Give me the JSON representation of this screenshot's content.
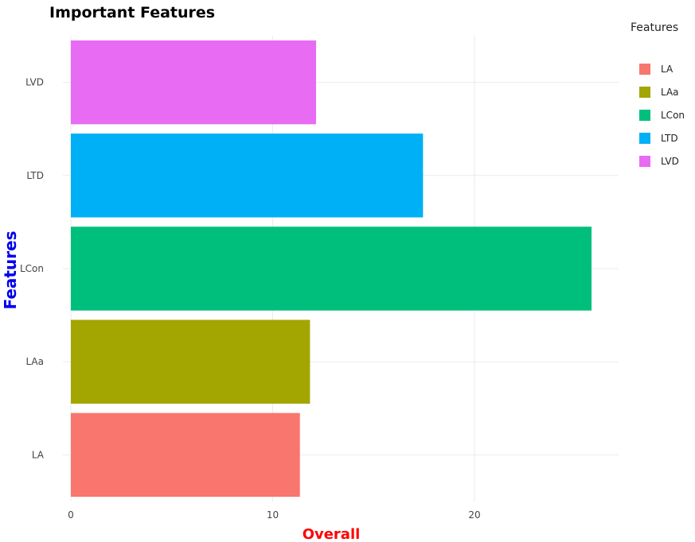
{
  "chart_data": {
    "type": "bar",
    "orientation": "horizontal",
    "title": "Important Features",
    "xlabel": "Overall",
    "ylabel": "Features",
    "xlabel_color": "#ff0000",
    "ylabel_color": "#0000ee",
    "categories": [
      "LA",
      "LAa",
      "LCon",
      "LTD",
      "LVD"
    ],
    "values": [
      11.35,
      11.85,
      25.8,
      17.45,
      12.15
    ],
    "colors": [
      "#F8766D",
      "#A3A500",
      "#00BF7D",
      "#00B0F6",
      "#E76BF3"
    ],
    "xlim": [
      -0.4,
      27
    ],
    "xticks": [
      0,
      10,
      20
    ],
    "grid": true,
    "legend": {
      "title": "Features",
      "placement": "right",
      "entries": [
        "LA",
        "LAa",
        "LCon",
        "LTD",
        "LVD"
      ]
    }
  }
}
